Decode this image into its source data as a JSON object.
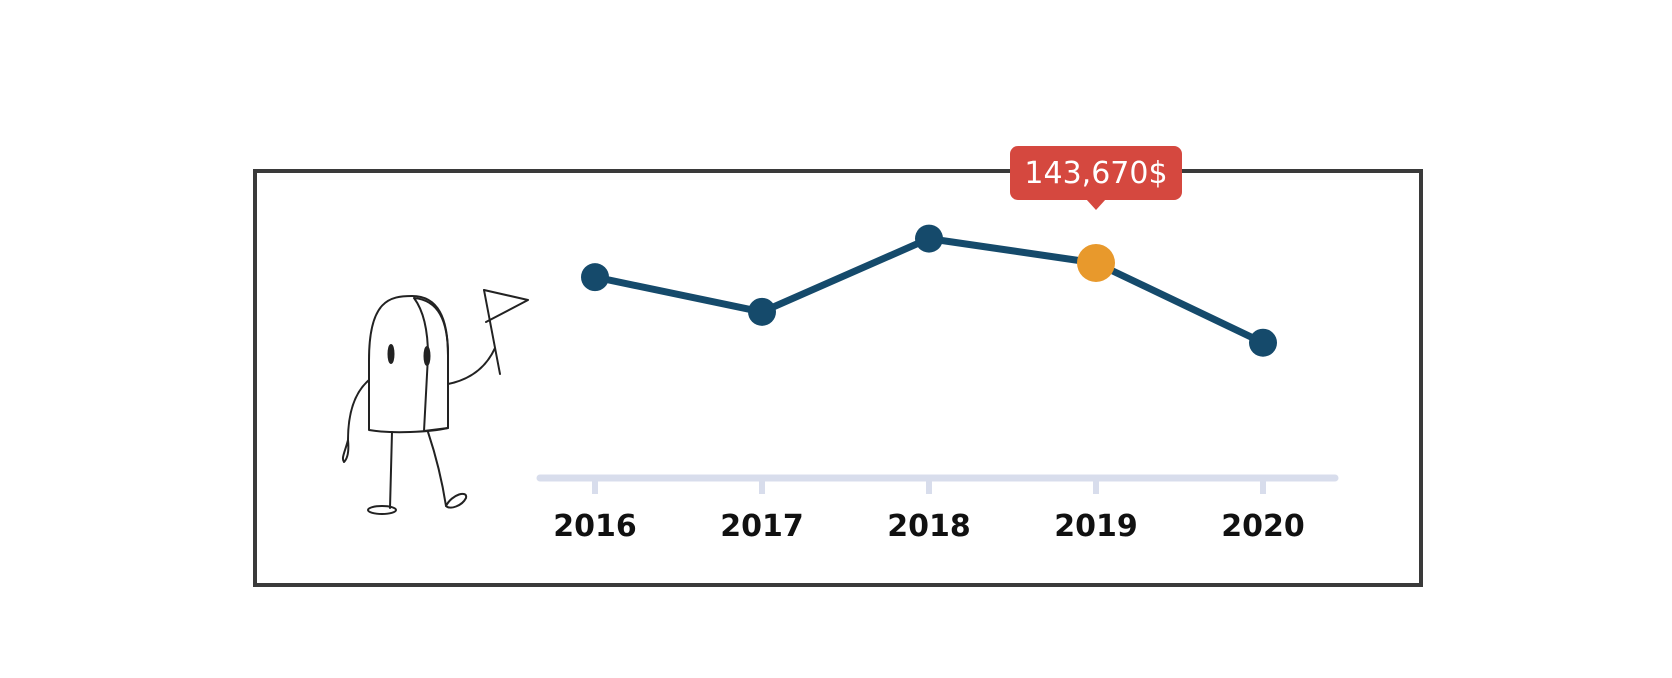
{
  "colors": {
    "line": "#154a6b",
    "point": "#154a6b",
    "highlight_point": "#e8992c",
    "tooltip_bg": "#d5483f",
    "tooltip_text": "#ffffff",
    "axis": "#d8ddec",
    "frame": "#3a3a3a",
    "mascot_accent": "#f0b84a"
  },
  "illustration": {
    "icon": "mascot-with-flag-icon"
  },
  "chart_data": {
    "type": "line",
    "title": "",
    "xlabel": "",
    "ylabel": "",
    "categories": [
      "2016",
      "2017",
      "2018",
      "2019",
      "2020"
    ],
    "series": [
      {
        "values": [
          140000,
          131000,
          150000,
          143670,
          123000
        ]
      }
    ],
    "ylim": [
      90000,
      160000
    ],
    "grid": false,
    "legend": "none",
    "highlight": {
      "category": "2019",
      "label": "143,670$"
    }
  }
}
